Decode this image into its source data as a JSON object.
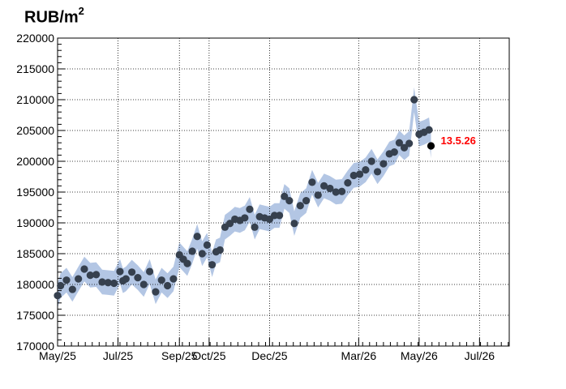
{
  "chart_data": {
    "type": "scatter",
    "title": "",
    "ylabel_base": "RUB/m",
    "ylabel_sup": "2",
    "xlabel": "",
    "ylim": [
      170000,
      220000
    ],
    "y_ticks": [
      170000,
      175000,
      180000,
      185000,
      190000,
      195000,
      200000,
      205000,
      210000,
      215000,
      220000
    ],
    "x_range": [
      "2025-05-01",
      "2026-07-31"
    ],
    "x_ticks": [
      {
        "label": "May/25",
        "date": "2025-05-01"
      },
      {
        "label": "Jul/25",
        "date": "2025-07-01"
      },
      {
        "label": "Sep/25",
        "date": "2025-09-01"
      },
      {
        "label": "Oct/25",
        "date": "2025-10-01"
      },
      {
        "label": "Dec/25",
        "date": "2025-12-01"
      },
      {
        "label": "Mar/26",
        "date": "2026-03-01"
      },
      {
        "label": "May/26",
        "date": "2026-05-01"
      },
      {
        "label": "Jul/26",
        "date": "2026-07-01"
      }
    ],
    "grid": true,
    "colors": {
      "points": "#36404e",
      "band": "#b3c6e4",
      "last_point": "#000000",
      "annotation": "#ff0000"
    },
    "band_halfwidth": 2000,
    "series": [
      {
        "x": [
          "2025-05-01",
          "2025-05-04",
          "2025-05-10",
          "2025-05-16",
          "2025-05-22",
          "2025-05-28",
          "2025-06-03",
          "2025-06-09",
          "2025-06-15",
          "2025-06-21",
          "2025-06-27",
          "2025-07-03",
          "2025-07-06",
          "2025-07-09",
          "2025-07-15",
          "2025-07-21",
          "2025-07-27",
          "2025-08-02",
          "2025-08-08",
          "2025-08-14",
          "2025-08-20",
          "2025-08-26",
          "2025-09-01",
          "2025-09-05",
          "2025-09-09",
          "2025-09-14",
          "2025-09-19",
          "2025-09-24",
          "2025-09-29",
          "2025-10-04",
          "2025-10-08",
          "2025-10-12",
          "2025-10-17",
          "2025-10-22",
          "2025-10-27",
          "2025-11-01",
          "2025-11-06",
          "2025-11-11",
          "2025-11-16",
          "2025-11-21",
          "2025-11-26",
          "2025-12-01",
          "2025-12-06",
          "2025-12-11",
          "2025-12-16",
          "2025-12-21",
          "2025-12-26",
          "2026-01-01",
          "2026-01-07",
          "2026-01-13",
          "2026-01-19",
          "2026-01-25",
          "2026-01-31",
          "2026-02-06",
          "2026-02-12",
          "2026-02-18",
          "2026-02-24",
          "2026-03-02",
          "2026-03-08",
          "2026-03-14",
          "2026-03-20",
          "2026-03-26",
          "2026-04-01",
          "2026-04-06",
          "2026-04-11",
          "2026-04-16",
          "2026-04-21",
          "2026-04-26",
          "2026-05-01",
          "2026-05-06",
          "2026-05-11"
        ],
        "y": [
          178200,
          179800,
          180700,
          179200,
          180900,
          182500,
          181500,
          181600,
          180400,
          180300,
          180200,
          182100,
          180600,
          180900,
          182000,
          181100,
          180000,
          182100,
          178800,
          180700,
          179800,
          180900,
          184800,
          184100,
          183400,
          185400,
          187800,
          185000,
          186400,
          183200,
          185300,
          185600,
          189300,
          189900,
          190600,
          190400,
          190800,
          192200,
          189300,
          191000,
          190800,
          190600,
          191200,
          191200,
          194300,
          193600,
          189900,
          192800,
          193600,
          196600,
          194500,
          196000,
          195600,
          195000,
          195100,
          196500,
          197700,
          197900,
          198600,
          200000,
          198300,
          199600,
          201200,
          201500,
          203000,
          202200,
          202900,
          210000,
          204400,
          204700,
          205100
        ]
      }
    ],
    "last_point": {
      "x": "2026-05-13",
      "y": 202500
    },
    "annotation": {
      "text": "13.5.26",
      "x": "2026-05-13",
      "y": 202500
    }
  }
}
